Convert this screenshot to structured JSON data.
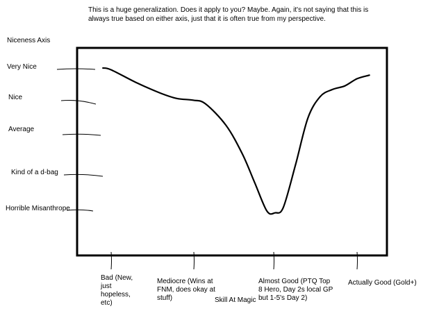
{
  "note": {
    "line1": "This is a huge generalization.  Does it apply to you?  Maybe.  Again, it's not saying that this is",
    "line2": "always true based on either axis, just that it is often true from my perspective."
  },
  "chart_data": {
    "type": "line",
    "title": "",
    "ylabel": "Niceness Axis",
    "xlabel": "Skill At Magic",
    "y_categories": [
      "Very Nice",
      "Nice",
      "Average",
      "Kind of a d-bag",
      "Horrible Misanthrope"
    ],
    "x_categories": [
      [
        "Bad (New,",
        "just",
        "hopeless,",
        "etc)"
      ],
      [
        "Mediocre (Wins at",
        "FNM, does okay at",
        "stuff)"
      ],
      [
        "Almost Good (PTQ Top",
        "8 Hero, Day 2s local GP",
        "but 1-5's Day 2)"
      ],
      [
        "Actually Good (Gold+)"
      ]
    ],
    "series": [
      {
        "x": [
          -0.1,
          0.0,
          0.3,
          0.6,
          0.8,
          1.0,
          1.15,
          1.4,
          1.6,
          1.75,
          1.9,
          2.0,
          2.1,
          2.25,
          2.4,
          2.55,
          2.7,
          2.85,
          3.0,
          3.15
        ],
        "y": [
          4.0,
          3.95,
          3.6,
          3.3,
          3.15,
          3.1,
          3.0,
          2.4,
          1.6,
          0.8,
          0.0,
          -0.05,
          0.1,
          1.3,
          2.6,
          3.2,
          3.4,
          3.5,
          3.7,
          3.8
        ]
      }
    ],
    "grid": false,
    "legend": "none"
  }
}
